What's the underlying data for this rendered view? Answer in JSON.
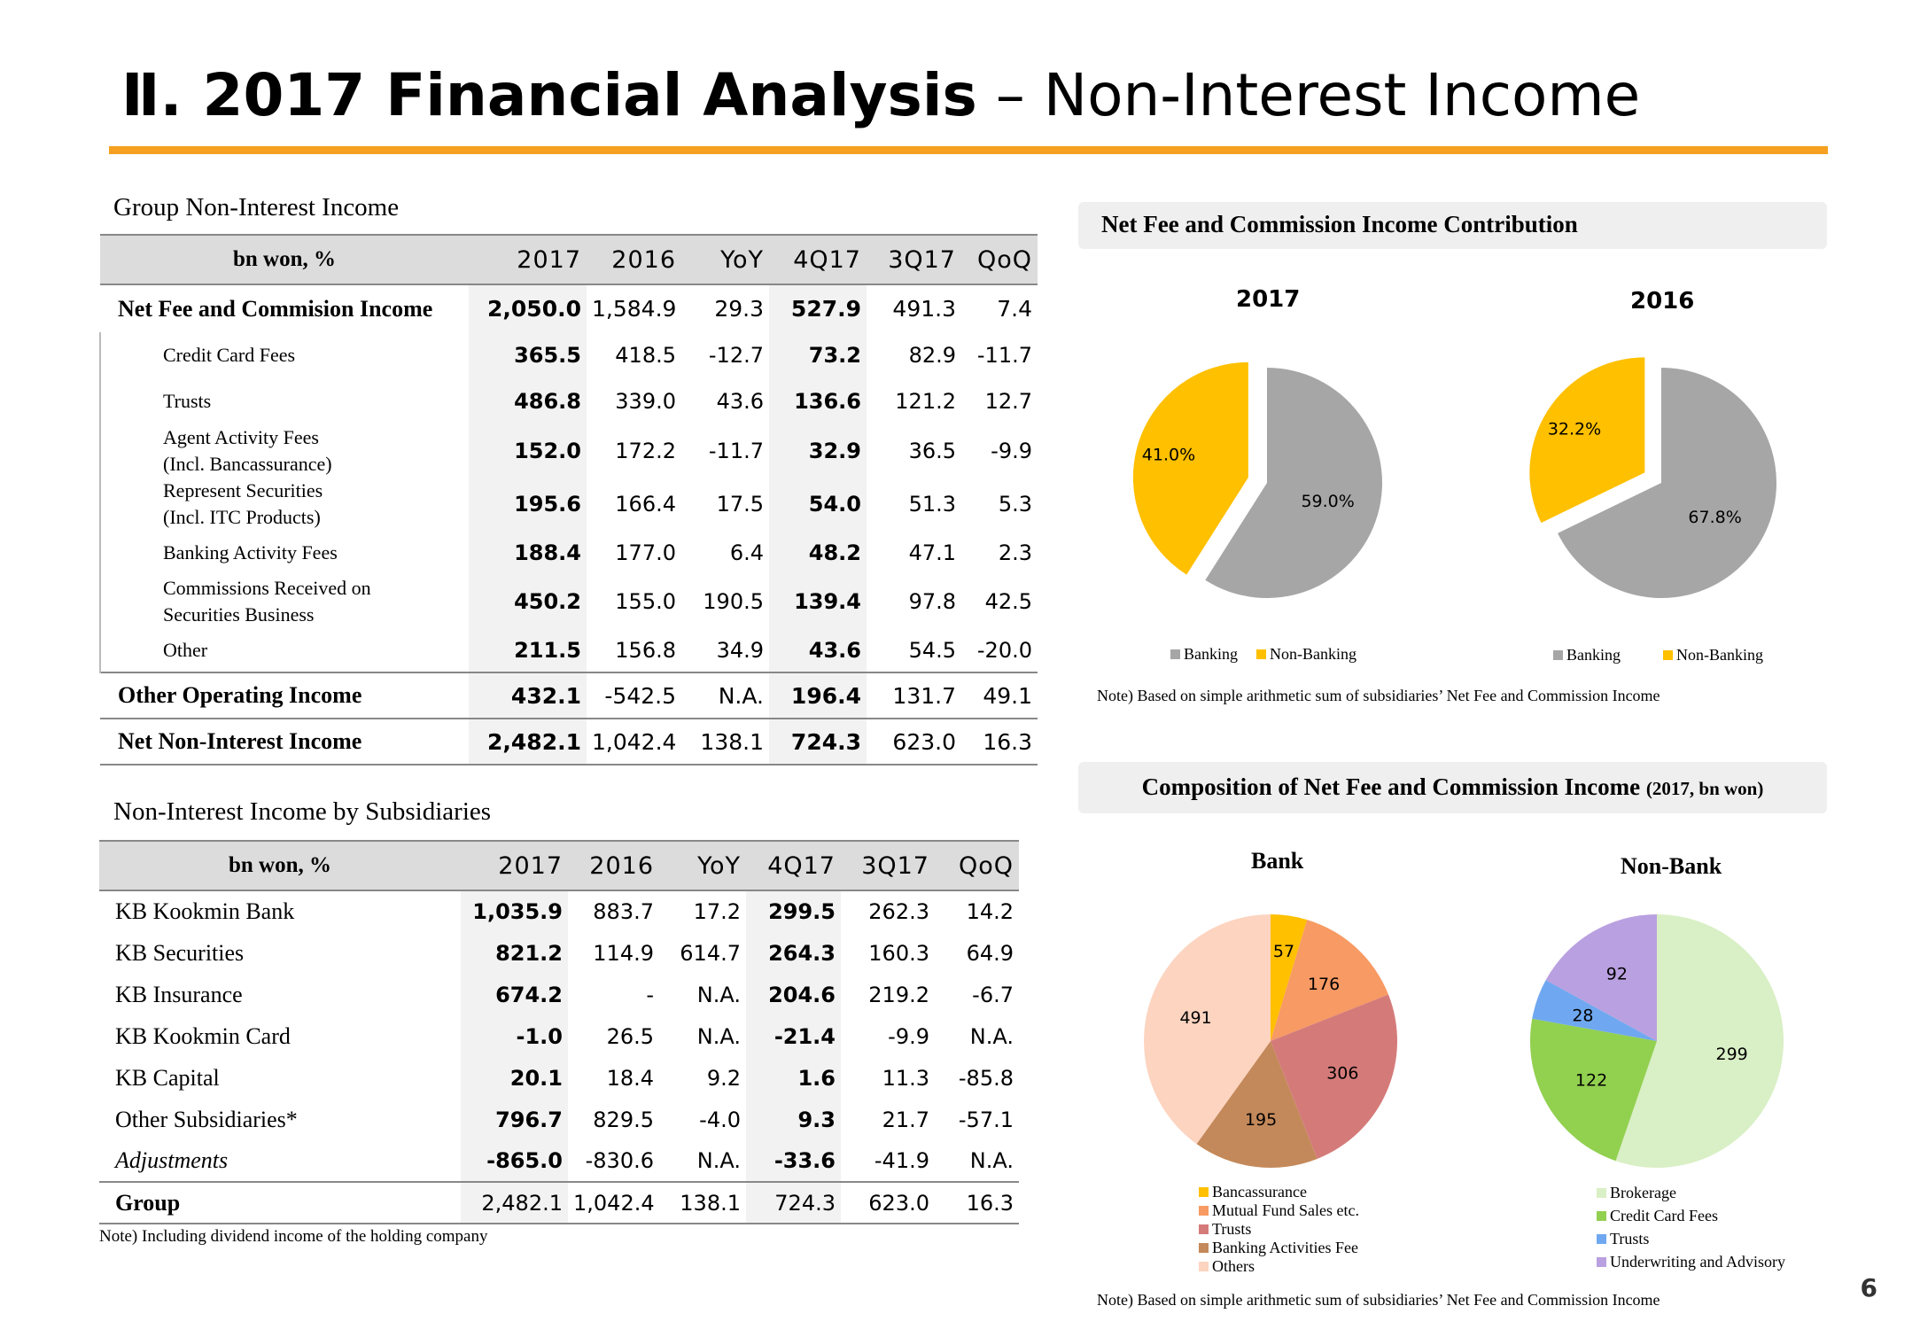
{
  "title": {
    "bold": "Ⅱ. 2017 Financial Analysis",
    "rest": " – Non-Interest Income"
  },
  "page_number": "6",
  "group_table": {
    "heading": "Group Non-Interest Income",
    "columns": [
      "bn won, %",
      "2017",
      "2016",
      "YoY",
      "4Q17",
      "3Q17",
      "QoQ"
    ],
    "rows": [
      {
        "label": "Net Fee and Commision Income",
        "values": [
          "2,050.0",
          "1,584.9",
          "29.3",
          "527.9",
          "491.3",
          "7.4"
        ]
      },
      {
        "label": "Credit Card Fees",
        "values": [
          "365.5",
          "418.5",
          "-12.7",
          "73.2",
          "82.9",
          "-11.7"
        ]
      },
      {
        "label": "Trusts",
        "values": [
          "486.8",
          "339.0",
          "43.6",
          "136.6",
          "121.2",
          "12.7"
        ]
      },
      {
        "label": "Agent Activity Fees",
        "label2": "(Incl. Bancassurance)",
        "values": [
          "152.0",
          "172.2",
          "-11.7",
          "32.9",
          "36.5",
          "-9.9"
        ]
      },
      {
        "label": "Represent Securities",
        "label2": "(Incl. ITC Products)",
        "values": [
          "195.6",
          "166.4",
          "17.5",
          "54.0",
          "51.3",
          "5.3"
        ]
      },
      {
        "label": "Banking Activity Fees",
        "values": [
          "188.4",
          "177.0",
          "6.4",
          "48.2",
          "47.1",
          "2.3"
        ]
      },
      {
        "label": "Commissions Received on",
        "label2": "Securities Business",
        "values": [
          "450.2",
          "155.0",
          "190.5",
          "139.4",
          "97.8",
          "42.5"
        ]
      },
      {
        "label": "Other",
        "values": [
          "211.5",
          "156.8",
          "34.9",
          "43.6",
          "54.5",
          "-20.0"
        ]
      },
      {
        "label": "Other Operating Income",
        "values": [
          "432.1",
          "-542.5",
          "N.A.",
          "196.4",
          "131.7",
          "49.1"
        ]
      },
      {
        "label": "Net Non-Interest Income",
        "values": [
          "2,482.1",
          "1,042.4",
          "138.1",
          "724.3",
          "623.0",
          "16.3"
        ]
      }
    ]
  },
  "subs_table": {
    "heading": "Non-Interest Income by Subsidiaries",
    "columns": [
      "bn won, %",
      "2017",
      "2016",
      "YoY",
      "4Q17",
      "3Q17",
      "QoQ"
    ],
    "rows": [
      {
        "label": "KB Kookmin Bank",
        "values": [
          "1,035.9",
          "883.7",
          "17.2",
          "299.5",
          "262.3",
          "14.2"
        ]
      },
      {
        "label": "KB Securities",
        "values": [
          "821.2",
          "114.9",
          "614.7",
          "264.3",
          "160.3",
          "64.9"
        ]
      },
      {
        "label": "KB Insurance",
        "values": [
          "674.2",
          "-",
          "N.A.",
          "204.6",
          "219.2",
          "-6.7"
        ]
      },
      {
        "label": "KB Kookmin Card",
        "values": [
          "-1.0",
          "26.5",
          "N.A.",
          "-21.4",
          "-9.9",
          "N.A."
        ]
      },
      {
        "label": "KB Capital",
        "values": [
          "20.1",
          "18.4",
          "9.2",
          "1.6",
          "11.3",
          "-85.8"
        ]
      },
      {
        "label": "Other Subsidiaries*",
        "values": [
          "796.7",
          "829.5",
          "-4.0",
          "9.3",
          "21.7",
          "-57.1"
        ]
      },
      {
        "label": "Adjustments",
        "values": [
          "-865.0",
          "-830.6",
          "N.A.",
          "-33.6",
          "-41.9",
          "N.A."
        ]
      },
      {
        "label": "Group",
        "values": [
          "2,482.1",
          "1,042.4",
          "138.1",
          "724.3",
          "623.0",
          "16.3"
        ]
      }
    ],
    "note": "Note) Including dividend income of the holding company"
  },
  "contribution": {
    "heading": "Net Fee and Commission Income Contribution",
    "note": "Note) Based on simple arithmetic sum of subsidiaries’ Net Fee and Commission Income",
    "legend": [
      "Banking",
      "Non-Banking"
    ],
    "colors": {
      "Banking": "#a6a6a6",
      "Non-Banking": "#ffc000"
    }
  },
  "composition": {
    "heading": "Composition of Net Fee and Commission Income",
    "heading_suffix": "(2017, bn won)",
    "note": "Note) Based on simple arithmetic sum of subsidiaries’ Net Fee and Commission Income",
    "bank_legend": [
      "Bancassurance",
      "Mutual Fund Sales etc.",
      "Trusts",
      "Banking Activities Fee",
      "Others"
    ],
    "bank_colors": [
      "#ffc000",
      "#f79a63",
      "#d47b7a",
      "#c4895a",
      "#fcd4c0"
    ],
    "nonbank_legend": [
      "Brokerage",
      "Credit Card Fees",
      "Trusts",
      "Underwriting and Advisory"
    ],
    "nonbank_colors": [
      "#d9efc5",
      "#92d050",
      "#6fa8f0",
      "#b9a0e0"
    ]
  },
  "chart_data": [
    {
      "type": "pie",
      "title": "2017",
      "categories": [
        "Banking",
        "Non-Banking"
      ],
      "values": [
        59.0,
        41.0
      ],
      "labels": [
        "59.0%",
        "41.0%"
      ]
    },
    {
      "type": "pie",
      "title": "2016",
      "categories": [
        "Banking",
        "Non-Banking"
      ],
      "values": [
        67.8,
        32.2
      ],
      "labels": [
        "67.8%",
        "32.2%"
      ]
    },
    {
      "type": "pie",
      "title": "Bank",
      "categories": [
        "Bancassurance",
        "Mutual Fund Sales etc.",
        "Trusts",
        "Banking Activities Fee",
        "Others"
      ],
      "values": [
        57,
        176,
        306,
        195,
        491
      ],
      "labels": [
        "57",
        "176",
        "306",
        "195",
        "491"
      ]
    },
    {
      "type": "pie",
      "title": "Non-Bank",
      "categories": [
        "Brokerage",
        "Credit Card Fees",
        "Trusts",
        "Underwriting and Advisory"
      ],
      "values": [
        299,
        122,
        28,
        92
      ],
      "labels": [
        "299",
        "122",
        "28",
        "92"
      ]
    }
  ]
}
